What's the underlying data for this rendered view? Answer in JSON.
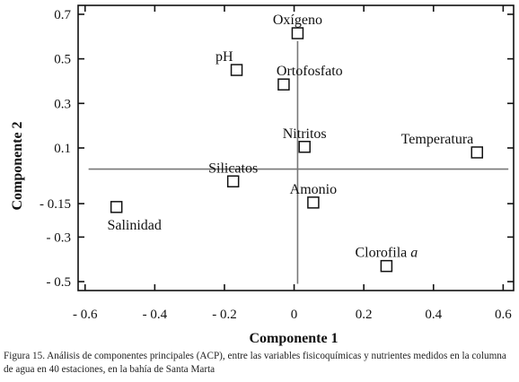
{
  "chart_data": {
    "type": "scatter",
    "title": "",
    "xlabel": "Componente 1",
    "ylabel": "Componente 2",
    "xlim": [
      -0.62,
      0.63
    ],
    "ylim": [
      -0.54,
      0.74
    ],
    "x_ticks": [
      -0.6,
      -0.4,
      -0.2,
      0,
      0.2,
      0.4,
      0.6
    ],
    "x_tick_labels": [
      "- 0.6",
      "- 0.4",
      "- 0.2",
      "0",
      "0.2",
      "0.4",
      "0.6"
    ],
    "y_ticks": [
      0.7,
      0.5,
      0.3,
      0.1,
      -0.15,
      -0.3,
      -0.5
    ],
    "y_tick_labels": [
      "0.7",
      "0.5",
      "0.3",
      "0.1",
      "- 0.15",
      "- 0.3",
      "- 0.5"
    ],
    "grid": false,
    "reference_lines": {
      "x": 0.01,
      "y": 0.005
    },
    "points": [
      {
        "label": "Oxígeno",
        "label_italic": "",
        "x": 0.01,
        "y": 0.615,
        "label_pos": "above"
      },
      {
        "label": "pH",
        "label_italic": "",
        "x": -0.165,
        "y": 0.45,
        "label_pos": "upper-left"
      },
      {
        "label": "Ortofosfato",
        "label_italic": "",
        "x": -0.03,
        "y": 0.385,
        "label_pos": "upper-right"
      },
      {
        "label": "Nitritos",
        "label_italic": "",
        "x": 0.03,
        "y": 0.105,
        "label_pos": "above"
      },
      {
        "label": "Temperatura",
        "label_italic": "",
        "x": 0.525,
        "y": 0.08,
        "label_pos": "upper-left"
      },
      {
        "label": "Silicatos",
        "label_italic": "",
        "x": -0.175,
        "y": -0.05,
        "label_pos": "above"
      },
      {
        "label": "Amonio",
        "label_italic": "",
        "x": 0.055,
        "y": -0.145,
        "label_pos": "above"
      },
      {
        "label": "Salinidad",
        "label_italic": "",
        "x": -0.51,
        "y": -0.165,
        "label_pos": "below"
      },
      {
        "label": "Clorofila ",
        "label_italic": "a",
        "x": 0.265,
        "y": -0.43,
        "label_pos": "above"
      }
    ]
  },
  "caption": "Figura 15. Análisis de componentes principales (ACP), entre las variables fisicoquímicas y nutrientes medidos en la columna de agua en 40 estaciones, en la bahía de Santa Marta"
}
